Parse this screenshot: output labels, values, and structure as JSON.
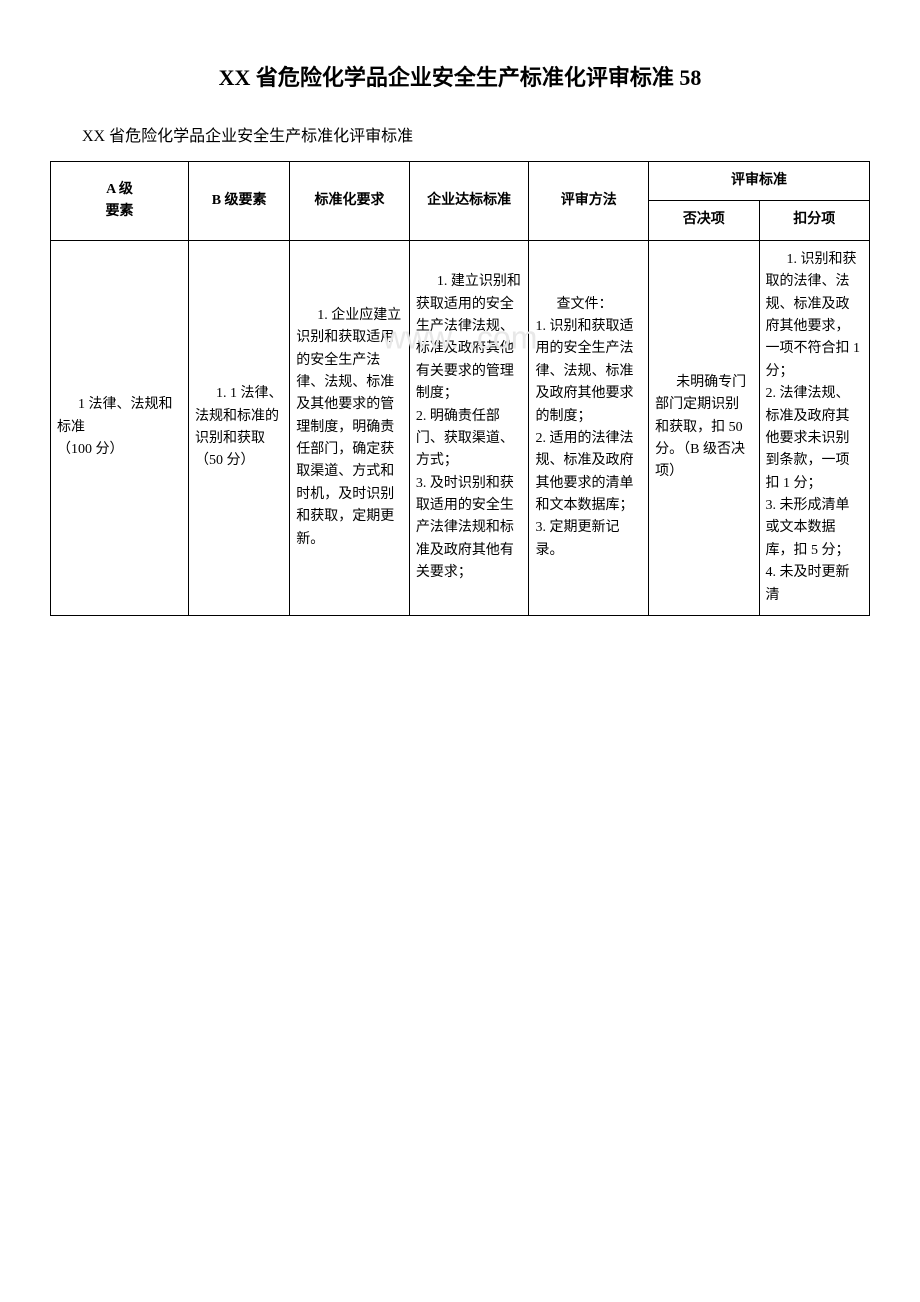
{
  "title": "XX 省危险化学品企业安全生产标准化评审标准 58",
  "subtitle": "XX 省危险化学品企业安全生产标准化评审标准",
  "watermark": "www.      .com",
  "headers": {
    "col_a": "A 级\n要素",
    "col_b": "B 级要素",
    "col_c": "标准化要求",
    "col_d": "企业达标标准",
    "col_e": "评审方法",
    "col_eval": "评审标准",
    "col_f": "否决项",
    "col_g": "扣分项"
  },
  "row1": {
    "a": "1 法律、法规和标准\n（100 分）",
    "b": "1. 1 法律、法规和标准的识别和获取\n（50 分）",
    "c": "1. 企业应建立识别和获取适用的安全生产法律、法规、标准及其他要求的管理制度，明确责任部门，确定获取渠道、方式和时机，及时识别和获取，定期更新。",
    "d": "1. 建立识别和获取适用的安全生产法律法规、标准及政府其他有关要求的管理制度；\n2. 明确责任部门、获取渠道、方式；\n3. 及时识别和获取适用的安全生产法律法规和标准及政府其他有关要求；",
    "e": "查文件：\n1. 识别和获取适用的安全生产法律、法规、标准及政府其他要求的制度；\n2. 适用的法律法规、标准及政府其他要求的清单和文本数据库；\n3. 定期更新记录。",
    "f": "未明确专门部门定期识别和获取，扣 50 分。（B 级否决项）",
    "g": "1. 识别和获取的法律、法规、标准及政府其他要求，一项不符合扣 1 分；\n2. 法律法规、标准及政府其他要求未识别到条款，一项扣 1 分；\n3. 未形成清单或文本数据库，扣 5 分；\n4. 未及时更新清"
  }
}
